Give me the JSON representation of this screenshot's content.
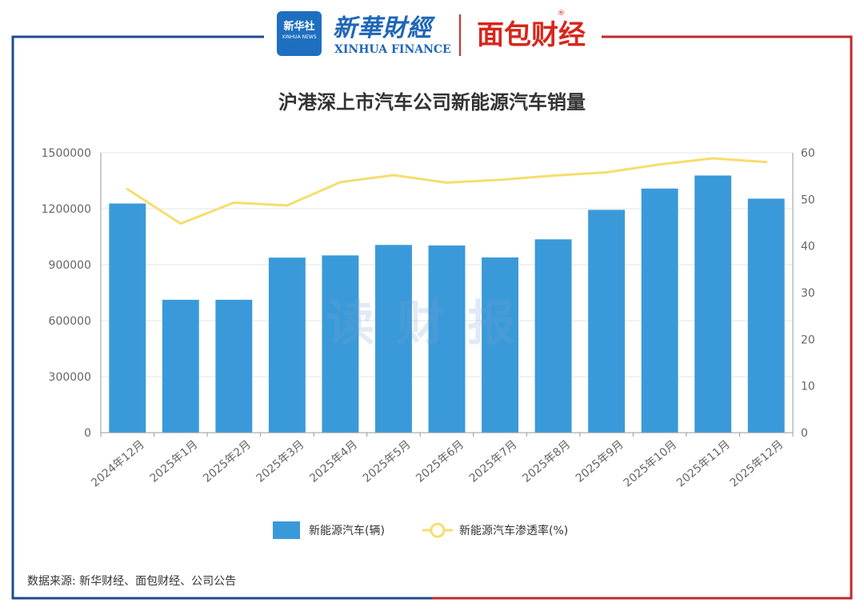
{
  "header": {
    "xinhua_badge_cn": "新华社",
    "xinhua_badge_en": "XINHUA NEWS",
    "xinhua_finance_cn": "新華財經",
    "xinhua_finance_en": "XINHUA FINANCE",
    "mianbao_logo": "面包财经",
    "registered_mark": "®"
  },
  "watermark": "读财报",
  "source_note": "数据来源: 新华财经、面包财经、公司公告",
  "colors": {
    "bar": "#3a9ad9",
    "line": "#f5de6e",
    "frame_left": "#1e4b8f",
    "frame_right": "#c0292a",
    "grid": "#e6e6e6",
    "axis_text": "#666666"
  },
  "chart_data": {
    "type": "bar",
    "title": "沪港深上市汽车公司新能源汽车销量",
    "categories": [
      "2024年12月",
      "2025年1月",
      "2025年2月",
      "2025年3月",
      "2025年4月",
      "2025年5月",
      "2025年6月",
      "2025年7月",
      "2025年8月",
      "2025年9月",
      "2025年10月",
      "2025年11月",
      "2025年12月"
    ],
    "series": [
      {
        "name": "新能源汽车(辆)",
        "type": "bar",
        "axis": "left",
        "values": [
          1228000,
          712000,
          712000,
          938000,
          950000,
          1006000,
          1003000,
          939000,
          1036000,
          1194000,
          1308000,
          1378000,
          1254000
        ]
      },
      {
        "name": "新能源汽车渗透率(%)",
        "type": "line",
        "axis": "right",
        "values": [
          52.2,
          44.8,
          49.3,
          48.7,
          53.7,
          55.2,
          53.6,
          54.2,
          55.1,
          55.8,
          57.5,
          58.8,
          58.0
        ]
      }
    ],
    "y_left": {
      "min": 0,
      "max": 1500000,
      "ticks": [
        "0",
        "300000",
        "600000",
        "900000",
        "1200000",
        "1500000"
      ]
    },
    "y_right": {
      "min": 0,
      "max": 60,
      "ticks": [
        "0",
        "10",
        "20",
        "30",
        "40",
        "50",
        "60"
      ]
    },
    "grid": true,
    "legend_position": "bottom"
  }
}
